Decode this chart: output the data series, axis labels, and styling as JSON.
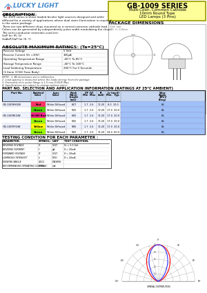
{
  "title": "GB-1009 SERIES",
  "subtitle_lines": [
    "Multi-Color, Common Cathode",
    "10mm Round Type",
    "LED Lamps (3 Pins)"
  ],
  "company": "LUCKY LIGHT",
  "section_description": "DESCRIPTION:",
  "section_ratings": "ABSOLUTE MAXIMUM RATINGS: (Ta=25°C)",
  "ratings": [
    [
      "Reverse Voltage",
      "5 Volt"
    ],
    [
      "Reverse Current (Vr =10V)",
      "100μA"
    ],
    [
      "Operating Temperature Range",
      "-40°C To 85°C"
    ],
    [
      "Storage Temperature Range",
      "-40°C To 100°C"
    ],
    [
      "Lead Soldering Temperature",
      "260°C For 5 Seconds"
    ],
    [
      "(1.6mm (1/16) From Body)",
      ""
    ]
  ],
  "notes": [
    "NOTE:  1. All dimensions are in millimeters.",
    "2. Lead spacing is measured where the leads emerge from the package.",
    "3. Protruded resin under flange is 1.5 mm (0.059) Max.",
    "4. Specifications are subject to change without notice."
  ],
  "section_package": "PACKAGE DIMENSIONS",
  "section_part": "PART NO. SELECTION AND APPLICATION INFORMATION (RATINGS AT 25°C AMBIENT)",
  "part_numbers": [
    "GB-1009HGW",
    "GB-1009EGW",
    "GB-1009YGW"
  ],
  "color_names": [
    [
      "Red",
      "Green"
    ],
    [
      "Hi-Eff Red",
      "Green"
    ],
    [
      "Yellow",
      "Green"
    ]
  ],
  "color_bgs": [
    [
      "#FF3366",
      "#55CC00"
    ],
    [
      "#FF2288",
      "#99FF00"
    ],
    [
      "#FFFF00",
      "#99FF00"
    ]
  ],
  "wavelengths": [
    [
      "627",
      "565"
    ],
    [
      "635",
      "565"
    ],
    [
      "585",
      "565"
    ]
  ],
  "iv_mins": [
    [
      "8.0",
      "17.0"
    ],
    [
      "17.0",
      "17.0"
    ],
    [
      "17.0",
      "34.0"
    ]
  ],
  "iv_typs": [
    [
      "10.0",
      "20.0"
    ],
    [
      "20.0",
      "20.0"
    ],
    [
      "20.0",
      "60.0"
    ]
  ],
  "section_testing": "TESTING CONDITION FOR EACH PARAMETER :",
  "test_params": [
    "REVERSE VOLTAGE",
    "REVERSE CURRENT",
    "FORWARD VOLTAGE",
    "LUMINOUS INTENSITY",
    "VIEWING ANGLE",
    "RECOMMENDED OPERATING CURRENT"
  ],
  "test_symbols": [
    "Vr",
    "Ir",
    "Vf",
    "Iv",
    "2θ1/2",
    "If (Rec.)"
  ],
  "test_units": [
    "VOLT",
    "μA",
    "VOLT",
    "MCD",
    "DEGREE",
    "mA"
  ],
  "test_conditions": [
    "Vr = 5.0 Volt",
    "If = 20mA",
    "If = 20mA",
    "If = 20mA",
    "",
    ""
  ],
  "bg_color": "#FFFFFF",
  "header_bg": "#FFFF99",
  "table_header_bg": "#C8D8F0",
  "view_angle_bg": "#A0C0F8"
}
